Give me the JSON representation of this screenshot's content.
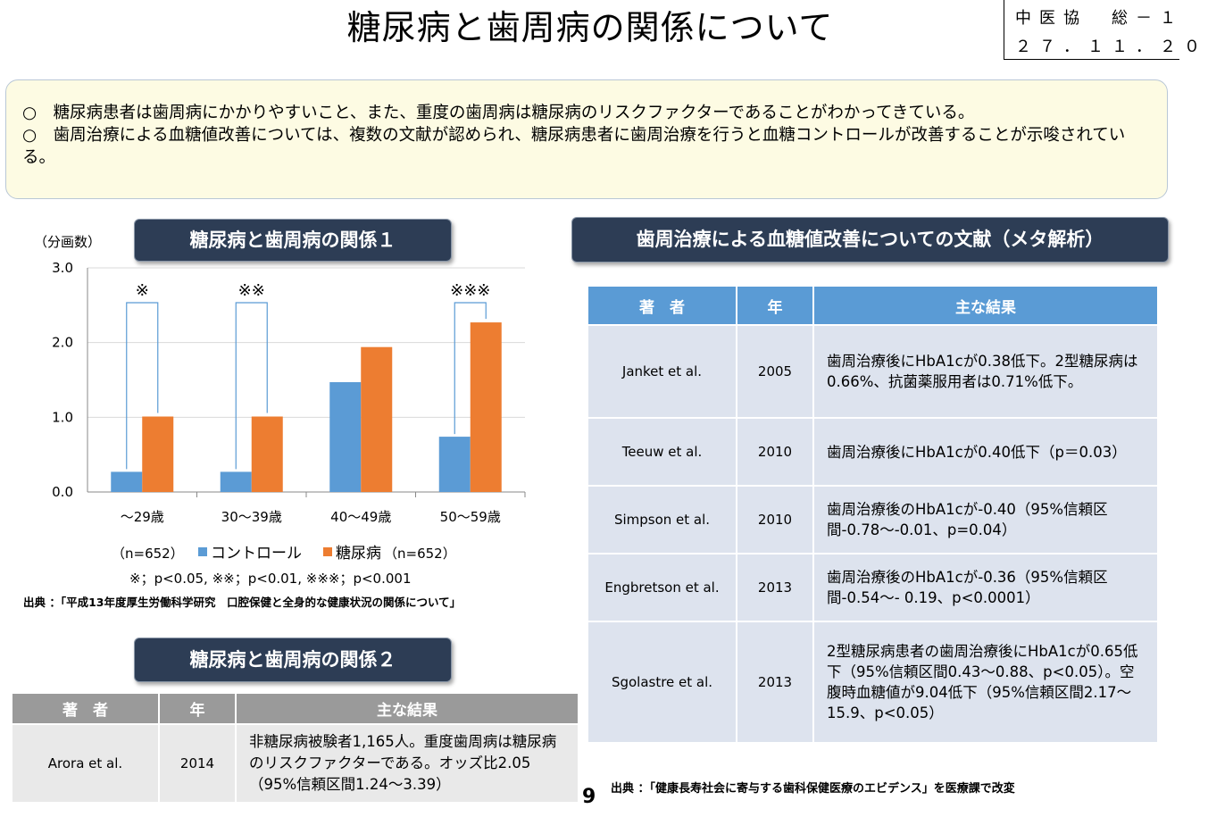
{
  "title": "糖尿病と歯周病の関係について",
  "doc_id": {
    "line1": "中医協　総－１",
    "line2": "２７．１１．２０"
  },
  "summary": [
    "○　糖尿病患者は歯周病にかかりやすいこと、また、重度の歯周病は糖尿病のリスクファクターであることがわかってきている。",
    "○　歯周治療による血糖値改善については、複数の文献が認められ、糖尿病患者に歯周治療を行うと血糖コントロールが改善することが示唆されている。"
  ],
  "section1_label": "糖尿病と歯周病の関係１",
  "section2_label": "糖尿病と歯周病の関係２",
  "section3_label": "歯周治療による血糖値改善についての文献（メタ解析）",
  "chart_data": {
    "type": "bar",
    "ylabel": "（分画数）",
    "ylim": [
      0,
      3.0
    ],
    "yticks": [
      "0.0",
      "1.0",
      "2.0",
      "3.0"
    ],
    "categories": [
      "～29歳",
      "30～39歳",
      "40～49歳",
      "50～59歳"
    ],
    "series": [
      {
        "name": "コントロール",
        "color": "#5b9bd5",
        "values": [
          0.27,
          0.27,
          1.47,
          0.74
        ]
      },
      {
        "name": "糖尿病",
        "color": "#ed7d31",
        "values": [
          1.01,
          1.01,
          1.94,
          2.27
        ]
      }
    ],
    "significance": [
      "※",
      "※※",
      "",
      "※※※"
    ],
    "legend_left_n": "（n=652）",
    "legend_right_n": "（n=652）",
    "p_note": "※；p<0.05, ※※；p<0.01, ※※※；p<0.001",
    "source": "出典 ：「平成13年度厚生労働科学研究　口腔保健と全身的な健康状況の関係について」"
  },
  "meta_table": {
    "headers": [
      "著　者",
      "年",
      "主な結果"
    ],
    "rows": [
      {
        "author": "Janket et al.",
        "year": "2005",
        "result": "歯周治療後にHbA1cが0.38低下。2型糖尿病は0.66%、抗菌薬服用者は0.71%低下。"
      },
      {
        "author": "Teeuw et al.",
        "year": "2010",
        "result": "歯周治療後にHbA1cが0.40低下（p＝0.03）"
      },
      {
        "author": "Simpson et al.",
        "year": "2010",
        "result": "歯周治療後のHbA1cが-0.40（95%信頼区間-0.78～-0.01、p=0.04）"
      },
      {
        "author": "Engbretson et al.",
        "year": "2013",
        "result": "歯周治療後のHbA1cが-0.36（95%信頼区間-0.54～- 0.19、p<0.0001）"
      },
      {
        "author": "Sgolastre et al.",
        "year": "2013",
        "result": "2型糖尿病患者の歯周治療後にHbA1cが0.65低下（95%信頼区間0.43～0.88、p<0.05）。空腹時血糖値が9.04低下（95%信頼区間2.17～15.9、p<0.05）"
      }
    ],
    "source": "出典 ：「健康長寿社会に寄与する歯科保健医療のエビデンス」を医療課で改変"
  },
  "rel2_table": {
    "headers": [
      "著　者",
      "年",
      "主な結果"
    ],
    "rows": [
      {
        "author": "Arora et al.",
        "year": "2014",
        "result": "非糖尿病被験者1,165人。重度歯周病は糖尿病のリスクファクターである。オッズ比2.05（95%信頼区間1.24～3.39）"
      }
    ]
  },
  "page_number": "9"
}
